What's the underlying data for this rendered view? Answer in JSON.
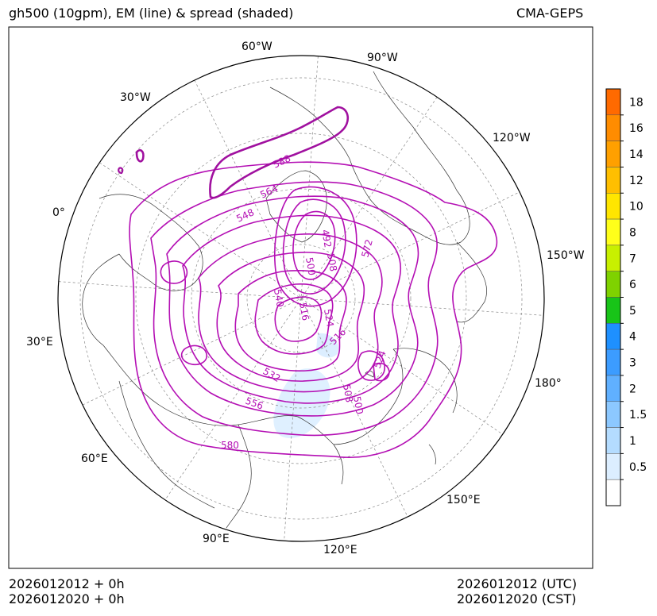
{
  "header": {
    "title": "gh500 (10gpm), EM (line) & spread (shaded)",
    "source": "CMA-GEPS"
  },
  "footer": {
    "init_left": "2026012012 + 0h",
    "local_left": "2026012020 + 0h",
    "init_right": "2026012012 (UTC)",
    "local_right": "2026012020 (CST)"
  },
  "map": {
    "projection": "north-polar-stereographic",
    "graticule_labels": [
      "60°W",
      "90°W",
      "30°W",
      "120°W",
      "0°",
      "150°W",
      "30°E",
      "180°",
      "60°E",
      "150°E",
      "90°E",
      "120°E"
    ],
    "contour_labels": [
      "588",
      "564",
      "548",
      "492",
      "508",
      "500",
      "572",
      "516",
      "524",
      "532",
      "556",
      "580",
      "540",
      "516",
      "524",
      "508",
      "500"
    ],
    "colors": {
      "contour": "#b40fb4",
      "coast": "#333333",
      "grid": "#888888",
      "spread_low": "#cfe8ff"
    }
  },
  "colorbar": {
    "labels": [
      "18",
      "16",
      "14",
      "12",
      "10",
      "8",
      "7",
      "6",
      "5",
      "4",
      "3",
      "2",
      "1.5",
      "1",
      "0.5"
    ],
    "colors": [
      "#ff6a00",
      "#ff8c00",
      "#ffa000",
      "#ffbf00",
      "#ffe600",
      "#ffff1a",
      "#c8f000",
      "#7fd200",
      "#18c418",
      "#1e90ff",
      "#3c9cff",
      "#60b0ff",
      "#8cc8ff",
      "#b4dcff",
      "#dceeff",
      "#ffffff"
    ]
  }
}
